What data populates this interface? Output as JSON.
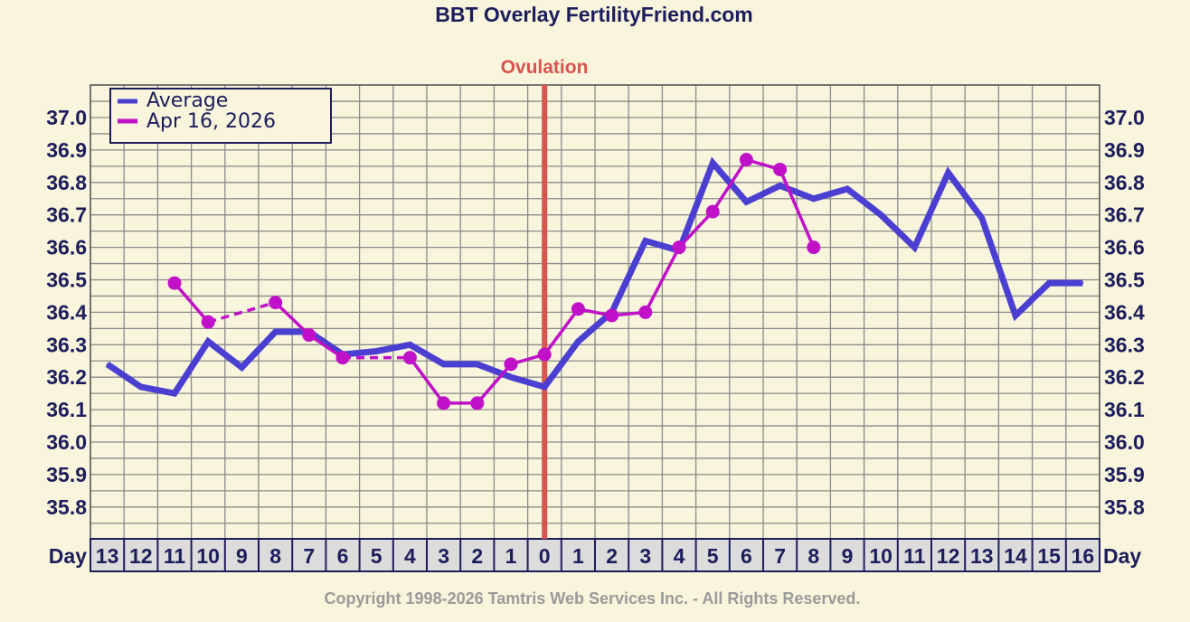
{
  "chart_data": {
    "type": "line",
    "title": "BBT Overlay FertilityFriend.com",
    "ovulation_label": "Ovulation",
    "ovulation_day": "0",
    "x_label": "Day",
    "categories": [
      "13",
      "12",
      "11",
      "10",
      "9",
      "8",
      "7",
      "6",
      "5",
      "4",
      "3",
      "2",
      "1",
      "0",
      "1",
      "2",
      "3",
      "4",
      "5",
      "6",
      "7",
      "8",
      "9",
      "10",
      "11",
      "12",
      "13",
      "14",
      "15",
      "16"
    ],
    "y_ticks": [
      "37.0",
      "36.9",
      "36.8",
      "36.7",
      "36.6",
      "36.5",
      "36.4",
      "36.3",
      "36.2",
      "36.1",
      "36.0",
      "35.9",
      "35.8"
    ],
    "ylim": [
      35.7,
      37.1
    ],
    "series": [
      {
        "name": "Average",
        "color": "#4b3fd1",
        "values": [
          36.24,
          36.17,
          36.15,
          36.31,
          36.23,
          36.34,
          36.34,
          36.27,
          36.28,
          36.3,
          36.24,
          36.24,
          36.2,
          36.17,
          36.31,
          36.4,
          36.62,
          36.59,
          36.86,
          36.74,
          36.79,
          36.75,
          36.78,
          36.7,
          36.6,
          36.83,
          36.69,
          36.39,
          36.49,
          36.49
        ]
      },
      {
        "name": "Apr 16, 2026",
        "color": "#c010c8",
        "values": [
          null,
          null,
          36.49,
          36.37,
          null,
          36.43,
          36.33,
          36.26,
          null,
          36.26,
          36.12,
          36.12,
          36.24,
          36.27,
          36.41,
          36.39,
          36.4,
          36.6,
          36.71,
          36.87,
          36.84,
          36.6,
          null,
          null,
          null,
          null,
          null,
          null,
          null,
          null
        ]
      }
    ],
    "grid": true,
    "legend_position": "top-left",
    "copyright": "Copyright 1998-2026 Tamtris Web Services Inc. - All Rights Reserved."
  }
}
